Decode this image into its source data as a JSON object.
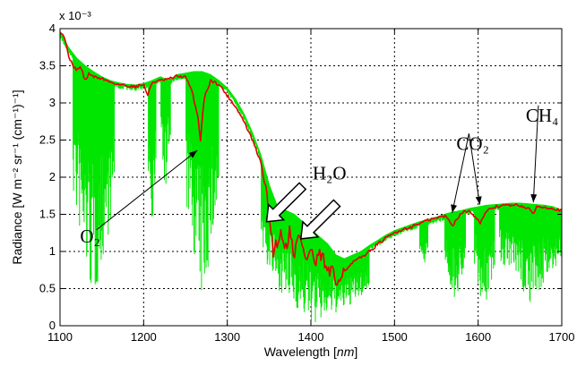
{
  "chart_data": {
    "type": "line",
    "xlabel_prefix": "Wavelength [",
    "xlabel_unit": "nm",
    "xlabel_suffix": "]",
    "ylabel": "Radiance [W m⁻² sr⁻¹ (cm⁻¹)⁻¹]",
    "y_multiplier": "x 10⁻³",
    "xlim": [
      1100,
      1700
    ],
    "ylim": [
      0,
      4
    ],
    "x_ticks": [
      1100,
      1200,
      1300,
      1400,
      1500,
      1600,
      1700
    ],
    "y_ticks": [
      0,
      0.5,
      1,
      1.5,
      2,
      2.5,
      3,
      3.5,
      4
    ],
    "y_tick_labels": [
      "0",
      "0.5",
      "1",
      "1.5",
      "2",
      "2.5",
      "3",
      "3.5",
      "4"
    ],
    "grid": true,
    "series": [
      {
        "color": "#00e600",
        "style": "high-resolution spectrum (dense absorption lines)",
        "upper_envelope": [
          [
            1100,
            3.95
          ],
          [
            1110,
            3.75
          ],
          [
            1120,
            3.6
          ],
          [
            1130,
            3.5
          ],
          [
            1140,
            3.42
          ],
          [
            1150,
            3.35
          ],
          [
            1160,
            3.3
          ],
          [
            1170,
            3.27
          ],
          [
            1180,
            3.25
          ],
          [
            1190,
            3.24
          ],
          [
            1200,
            3.26
          ],
          [
            1210,
            3.3
          ],
          [
            1220,
            3.35
          ],
          [
            1230,
            3.3
          ],
          [
            1240,
            3.38
          ],
          [
            1250,
            3.4
          ],
          [
            1260,
            3.42
          ],
          [
            1270,
            3.42
          ],
          [
            1280,
            3.38
          ],
          [
            1290,
            3.3
          ],
          [
            1300,
            3.2
          ],
          [
            1310,
            3.05
          ],
          [
            1320,
            2.85
          ],
          [
            1330,
            2.6
          ],
          [
            1340,
            2.3
          ],
          [
            1350,
            1.9
          ],
          [
            1360,
            1.6
          ],
          [
            1370,
            1.55
          ],
          [
            1380,
            1.5
          ],
          [
            1390,
            1.4
          ],
          [
            1400,
            1.3
          ],
          [
            1410,
            1.2
          ],
          [
            1420,
            1.1
          ],
          [
            1430,
            0.95
          ],
          [
            1440,
            0.9
          ],
          [
            1450,
            0.95
          ],
          [
            1460,
            1.0
          ],
          [
            1470,
            1.08
          ],
          [
            1480,
            1.15
          ],
          [
            1490,
            1.22
          ],
          [
            1500,
            1.28
          ],
          [
            1510,
            1.32
          ],
          [
            1520,
            1.36
          ],
          [
            1530,
            1.4
          ],
          [
            1540,
            1.43
          ],
          [
            1550,
            1.46
          ],
          [
            1560,
            1.5
          ],
          [
            1570,
            1.53
          ],
          [
            1580,
            1.55
          ],
          [
            1590,
            1.58
          ],
          [
            1600,
            1.6
          ],
          [
            1610,
            1.62
          ],
          [
            1620,
            1.63
          ],
          [
            1630,
            1.64
          ],
          [
            1640,
            1.65
          ],
          [
            1650,
            1.65
          ],
          [
            1660,
            1.64
          ],
          [
            1670,
            1.63
          ],
          [
            1680,
            1.62
          ],
          [
            1690,
            1.6
          ],
          [
            1700,
            1.55
          ]
        ],
        "absorption_bands": [
          {
            "start": 1115,
            "end": 1165,
            "min": 0.25
          },
          {
            "start": 1205,
            "end": 1215,
            "min": 1.25
          },
          {
            "start": 1220,
            "end": 1232,
            "min": 1.75
          },
          {
            "start": 1250,
            "end": 1290,
            "min": 0.25
          },
          {
            "start": 1340,
            "end": 1470,
            "min": 0.0
          },
          {
            "start": 1530,
            "end": 1540,
            "min": 0.7
          },
          {
            "start": 1560,
            "end": 1585,
            "min": 0.25
          },
          {
            "start": 1595,
            "end": 1620,
            "min": 0.15
          },
          {
            "start": 1625,
            "end": 1700,
            "min": 0.3
          }
        ]
      },
      {
        "color": "#e60000",
        "style": "convolved spectrum",
        "points": [
          [
            1100,
            3.97
          ],
          [
            1105,
            3.9
          ],
          [
            1110,
            3.65
          ],
          [
            1115,
            3.5
          ],
          [
            1120,
            3.45
          ],
          [
            1125,
            3.48
          ],
          [
            1130,
            3.3
          ],
          [
            1135,
            3.4
          ],
          [
            1140,
            3.35
          ],
          [
            1150,
            3.33
          ],
          [
            1160,
            3.28
          ],
          [
            1170,
            3.25
          ],
          [
            1180,
            3.23
          ],
          [
            1190,
            3.22
          ],
          [
            1200,
            3.25
          ],
          [
            1205,
            3.1
          ],
          [
            1210,
            3.28
          ],
          [
            1220,
            3.3
          ],
          [
            1230,
            3.32
          ],
          [
            1240,
            3.36
          ],
          [
            1250,
            3.35
          ],
          [
            1258,
            3.15
          ],
          [
            1265,
            2.8
          ],
          [
            1268,
            2.5
          ],
          [
            1272,
            3.05
          ],
          [
            1280,
            3.3
          ],
          [
            1290,
            3.25
          ],
          [
            1300,
            3.1
          ],
          [
            1310,
            2.95
          ],
          [
            1320,
            2.75
          ],
          [
            1330,
            2.5
          ],
          [
            1340,
            2.2
          ],
          [
            1345,
            1.9
          ],
          [
            1350,
            1.5
          ],
          [
            1355,
            1.0
          ],
          [
            1360,
            1.15
          ],
          [
            1365,
            1.25
          ],
          [
            1370,
            1.05
          ],
          [
            1375,
            1.3
          ],
          [
            1380,
            0.95
          ],
          [
            1385,
            1.2
          ],
          [
            1390,
            1.1
          ],
          [
            1395,
            0.85
          ],
          [
            1400,
            1.05
          ],
          [
            1405,
            0.8
          ],
          [
            1410,
            0.95
          ],
          [
            1415,
            0.9
          ],
          [
            1420,
            0.7
          ],
          [
            1425,
            0.75
          ],
          [
            1430,
            0.55
          ],
          [
            1435,
            0.7
          ],
          [
            1440,
            0.75
          ],
          [
            1445,
            0.78
          ],
          [
            1450,
            0.85
          ],
          [
            1460,
            0.92
          ],
          [
            1470,
            1.0
          ],
          [
            1480,
            1.1
          ],
          [
            1490,
            1.18
          ],
          [
            1500,
            1.25
          ],
          [
            1510,
            1.3
          ],
          [
            1520,
            1.33
          ],
          [
            1530,
            1.38
          ],
          [
            1540,
            1.42
          ],
          [
            1550,
            1.45
          ],
          [
            1560,
            1.48
          ],
          [
            1565,
            1.42
          ],
          [
            1570,
            1.35
          ],
          [
            1575,
            1.45
          ],
          [
            1580,
            1.52
          ],
          [
            1590,
            1.55
          ],
          [
            1598,
            1.45
          ],
          [
            1602,
            1.38
          ],
          [
            1608,
            1.5
          ],
          [
            1615,
            1.58
          ],
          [
            1620,
            1.6
          ],
          [
            1630,
            1.62
          ],
          [
            1640,
            1.62
          ],
          [
            1650,
            1.62
          ],
          [
            1660,
            1.58
          ],
          [
            1665,
            1.5
          ],
          [
            1670,
            1.6
          ],
          [
            1680,
            1.6
          ],
          [
            1690,
            1.58
          ],
          [
            1700,
            1.55
          ]
        ]
      }
    ],
    "annotations": [
      {
        "text": "O₂",
        "x": 1124,
        "y": 1.12,
        "arrow_to": [
          1264,
          2.36
        ]
      },
      {
        "text": "H₂O",
        "x": 1402,
        "y": 1.97
      },
      {
        "text": "CO₂",
        "x": 1574,
        "y": 2.37,
        "arrow_to": [
          [
            1569,
            1.52
          ],
          [
            1602,
            1.63
          ]
        ]
      },
      {
        "text": "CH₄",
        "x": 1657,
        "y": 2.75,
        "arrow_to": [
          1666,
          1.66
        ]
      }
    ],
    "block_arrows": [
      {
        "from": [
          1390,
          1.88
        ],
        "to": [
          1347,
          1.4
        ]
      },
      {
        "from": [
          1431,
          1.65
        ],
        "to": [
          1388,
          1.17
        ]
      }
    ]
  }
}
